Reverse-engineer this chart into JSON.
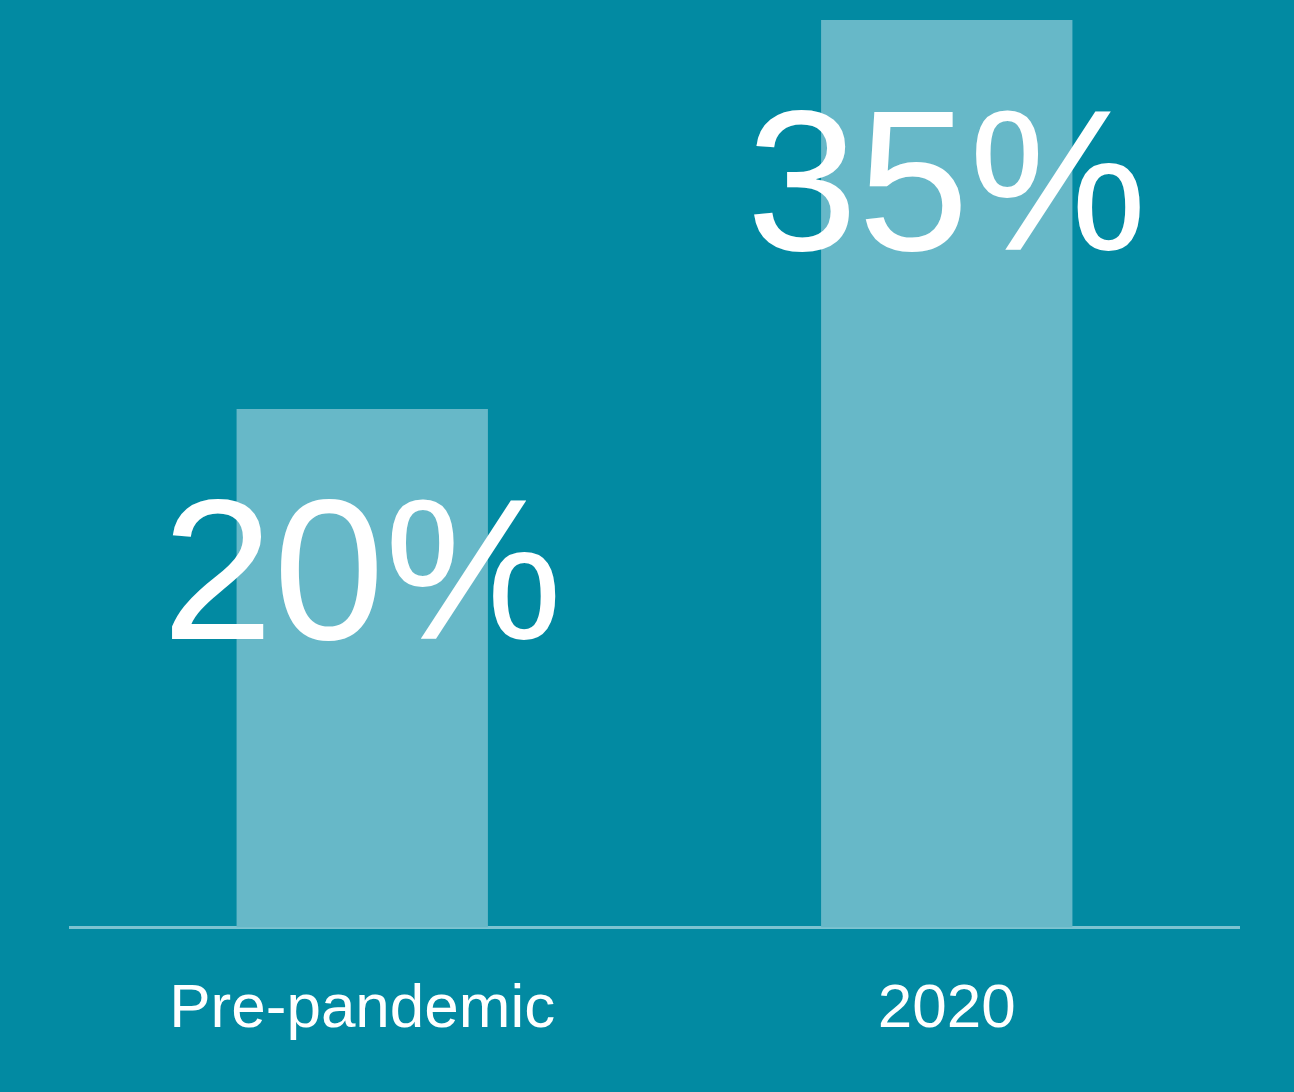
{
  "chart_data": {
    "type": "bar",
    "categories": [
      "Pre-pandemic",
      "2020"
    ],
    "values": [
      20,
      35
    ],
    "color": "#67b8c8",
    "value_labels": [
      "20%",
      "35%"
    ],
    "grid": false,
    "legend": false,
    "tick_labels": "x"
  }
}
